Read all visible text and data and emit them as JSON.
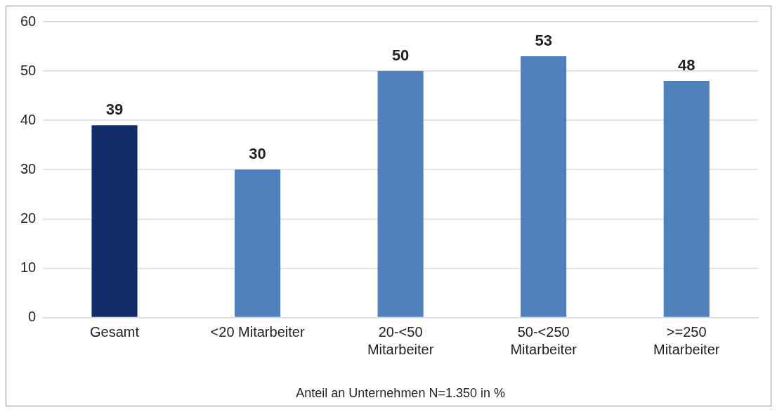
{
  "chart_data": {
    "type": "bar",
    "xlabel": "Anteil an Unternehmen N=1.350 in %",
    "categories": [
      "Gesamt",
      "<20 Mitarbeiter",
      "20-<50 Mitarbeiter",
      "50-<250 Mitarbeiter",
      ">=250 Mitarbeiter"
    ],
    "values": [
      39,
      30,
      50,
      53,
      48
    ],
    "colors": [
      "#132d6a",
      "#4f81bd",
      "#4f81bd",
      "#4f81bd",
      "#4f81bd"
    ],
    "ylim": [
      0,
      60
    ],
    "yticks": [
      0,
      10,
      20,
      30,
      40,
      50,
      60
    ],
    "grid": "y",
    "legend": false,
    "data_labels": true
  }
}
